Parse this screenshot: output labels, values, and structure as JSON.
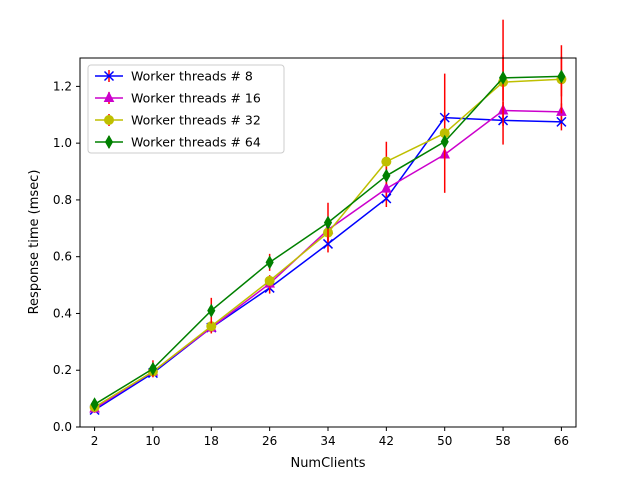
{
  "chart_data": {
    "type": "line",
    "title": "",
    "xlabel": "NumClients",
    "ylabel": "Response time (msec)",
    "x": [
      2,
      10,
      18,
      26,
      34,
      42,
      50,
      58,
      66
    ],
    "x_ticks": [
      "2",
      "10",
      "18",
      "26",
      "34",
      "42",
      "50",
      "58",
      "66"
    ],
    "y_ticks": [
      "0.0",
      "0.2",
      "0.4",
      "0.6",
      "0.8",
      "1.0",
      "1.2"
    ],
    "xlim": [
      0,
      68
    ],
    "ylim": [
      0,
      1.3
    ],
    "grid": false,
    "legend_position": "upper-left",
    "errorbar_color": "#ff0000",
    "series": [
      {
        "name": "Worker threads # 8",
        "color": "#0000ff",
        "marker": "x-cross",
        "values": [
          0.06,
          0.19,
          0.35,
          0.49,
          0.645,
          0.805,
          1.09,
          1.08,
          1.075
        ],
        "errors": [
          0.01,
          0.01,
          0.02,
          0.02,
          0.03,
          0.03,
          0.02,
          0.02,
          0.03
        ]
      },
      {
        "name": "Worker threads # 16",
        "color": "#cc00cc",
        "marker": "triangle-up",
        "values": [
          0.065,
          0.195,
          0.35,
          0.505,
          0.695,
          0.84,
          0.96,
          1.115,
          1.11
        ],
        "errors": [
          0.01,
          0.01,
          0.02,
          0.02,
          0.03,
          0.03,
          0.02,
          0.03,
          0.03
        ]
      },
      {
        "name": "Worker threads # 32",
        "color": "#bfbf00",
        "marker": "circle",
        "values": [
          0.07,
          0.195,
          0.355,
          0.515,
          0.685,
          0.935,
          1.035,
          1.215,
          1.225
        ],
        "errors": [
          0.01,
          0.01,
          0.02,
          0.02,
          0.03,
          0.07,
          0.21,
          0.22,
          0.12
        ]
      },
      {
        "name": "Worker threads # 64",
        "color": "#008000",
        "marker": "thin-diamond",
        "values": [
          0.08,
          0.205,
          0.41,
          0.58,
          0.72,
          0.885,
          1.005,
          1.23,
          1.235
        ],
        "errors": [
          0.01,
          0.03,
          0.045,
          0.03,
          0.07,
          0.03,
          0.02,
          0.08,
          0.07
        ]
      }
    ]
  }
}
